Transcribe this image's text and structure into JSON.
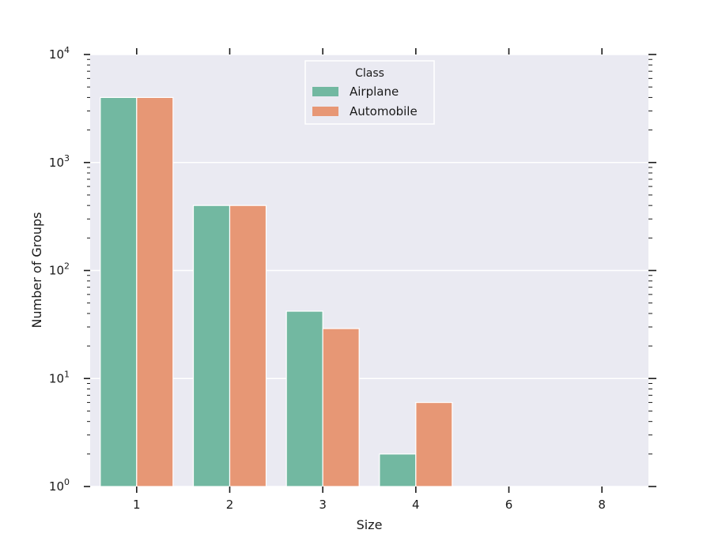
{
  "chart_data": {
    "type": "bar",
    "xlabel": "Size",
    "ylabel": "Number of Groups",
    "yscale": "log",
    "ylim": [
      1,
      10000
    ],
    "categories": [
      "1",
      "2",
      "3",
      "4",
      "6",
      "8"
    ],
    "y_ticks": [
      {
        "base": "10",
        "exp": "0"
      },
      {
        "base": "10",
        "exp": "1"
      },
      {
        "base": "10",
        "exp": "2"
      },
      {
        "base": "10",
        "exp": "3"
      },
      {
        "base": "10",
        "exp": "4"
      }
    ],
    "series": [
      {
        "name": "Airplane",
        "color": "#72b8a1",
        "values": [
          4000,
          400,
          42,
          2,
          null,
          null
        ]
      },
      {
        "name": "Automobile",
        "color": "#e79775",
        "values": [
          4000,
          400,
          29,
          6,
          null,
          null
        ]
      }
    ],
    "legend": {
      "title": "Class",
      "position": "top-center"
    },
    "grid": true,
    "background": "#eaeaf2",
    "grid_color": "#ffffff"
  }
}
